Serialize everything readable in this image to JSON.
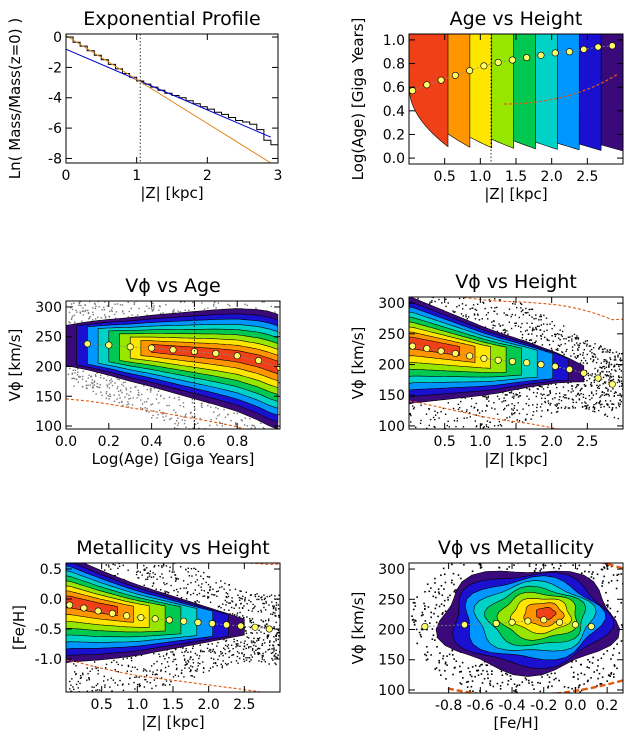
{
  "chart_data": [
    {
      "id": "p1",
      "type": "line",
      "title": "Exponential Profile",
      "xlabel": "|Z|  [kpc]",
      "ylabel": "Ln( Mass/Mass(z=0) )",
      "xlim": [
        0,
        3
      ],
      "ylim": [
        -8.3,
        0.2
      ],
      "xticks": [
        0,
        1,
        2,
        3
      ],
      "xtick_labels": [
        "0",
        "1",
        "2",
        "3"
      ],
      "yticks": [
        0,
        -2,
        -4,
        -6,
        -8
      ],
      "ytick_labels": [
        "0",
        "-2",
        "-4",
        "-6",
        "-8"
      ],
      "vline": 1.05,
      "series": [
        {
          "kind": "step",
          "color": "#000000",
          "x": [
            0,
            0.1,
            0.2,
            0.3,
            0.4,
            0.5,
            0.6,
            0.7,
            0.8,
            0.9,
            1.0,
            1.1,
            1.2,
            1.3,
            1.4,
            1.5,
            1.6,
            1.7,
            1.8,
            1.9,
            2.0,
            2.1,
            2.2,
            2.3,
            2.4,
            2.5,
            2.6,
            2.7,
            2.8,
            2.9
          ],
          "y": [
            0,
            -0.35,
            -0.6,
            -0.9,
            -1.2,
            -1.5,
            -1.8,
            -2.1,
            -2.4,
            -2.65,
            -2.9,
            -3.1,
            -3.3,
            -3.5,
            -3.7,
            -3.85,
            -4.0,
            -4.2,
            -4.4,
            -4.6,
            -4.75,
            -4.95,
            -5.1,
            -5.3,
            -5.5,
            -5.6,
            -5.75,
            -6.1,
            -6.8,
            -7.1
          ]
        },
        {
          "kind": "line",
          "color": "#0000cc",
          "x": [
            0,
            2.9
          ],
          "y": [
            -0.8,
            -6.6
          ]
        },
        {
          "kind": "line",
          "color": "#e08a1e",
          "x": [
            0,
            2.9
          ],
          "y": [
            0.1,
            -8.3
          ]
        }
      ]
    },
    {
      "id": "p2",
      "type": "heatmap",
      "title": "Age vs Height",
      "xlabel": "|Z|  [kpc]",
      "ylabel": "Log(Age) [Giga Years]",
      "xlim": [
        0,
        3
      ],
      "ylim": [
        -0.05,
        1.05
      ],
      "xticks": [
        0.5,
        1,
        1.5,
        2,
        2.5
      ],
      "xtick_labels": [
        "0.5",
        "1.0",
        "1.5",
        "2.0",
        "2.5"
      ],
      "yticks": [
        0,
        0.2,
        0.4,
        0.6,
        0.8,
        1.0
      ],
      "ytick_labels": [
        "0.0",
        "0.2",
        "0.4",
        "0.6",
        "0.8",
        "1.0"
      ],
      "vline": 1.15,
      "trend": {
        "x": [
          0.05,
          0.25,
          0.45,
          0.65,
          0.85,
          1.05,
          1.25,
          1.45,
          1.65,
          1.85,
          2.05,
          2.25,
          2.45,
          2.65,
          2.85
        ],
        "y": [
          0.57,
          0.62,
          0.66,
          0.7,
          0.74,
          0.78,
          0.81,
          0.83,
          0.85,
          0.87,
          0.89,
          0.9,
          0.92,
          0.94,
          0.95
        ]
      }
    },
    {
      "id": "p3",
      "type": "heatmap",
      "title": "Vϕ vs Age",
      "xlabel": "Log(Age)  [Giga Years]",
      "ylabel": "Vϕ  [km/s]",
      "xlim": [
        0,
        1
      ],
      "ylim": [
        95,
        310
      ],
      "xticks": [
        0,
        0.2,
        0.4,
        0.6,
        0.8
      ],
      "xtick_labels": [
        "0.0",
        "0.2",
        "0.4",
        "0.6",
        "0.8"
      ],
      "yticks": [
        100,
        150,
        200,
        250,
        300
      ],
      "ytick_labels": [
        "100",
        "150",
        "200",
        "250",
        "300"
      ],
      "vline": 0.6,
      "trend": {
        "x": [
          0.1,
          0.2,
          0.3,
          0.4,
          0.5,
          0.6,
          0.7,
          0.8,
          0.9,
          1.0
        ],
        "y": [
          238,
          236,
          233,
          231,
          228,
          225,
          222,
          218,
          210,
          198
        ]
      }
    },
    {
      "id": "p4",
      "type": "heatmap",
      "title": "Vϕ vs Height",
      "xlabel": "|Z|  [kpc]",
      "ylabel": "Vϕ  [km/s]",
      "xlim": [
        0,
        3
      ],
      "ylim": [
        95,
        310
      ],
      "xticks": [
        0.5,
        1,
        1.5,
        2,
        2.5
      ],
      "xtick_labels": [
        "0.5",
        "1.0",
        "1.5",
        "2.0",
        "2.5"
      ],
      "yticks": [
        100,
        150,
        200,
        250,
        300
      ],
      "ytick_labels": [
        "100",
        "150",
        "200",
        "250",
        "300"
      ],
      "trend": {
        "x": [
          0.05,
          0.25,
          0.45,
          0.65,
          0.85,
          1.05,
          1.25,
          1.45,
          1.65,
          1.85,
          2.05,
          2.25,
          2.45,
          2.65,
          2.85
        ],
        "y": [
          230,
          226,
          222,
          218,
          214,
          210,
          207,
          205,
          203,
          200,
          197,
          192,
          186,
          178,
          168
        ]
      }
    },
    {
      "id": "p5",
      "type": "heatmap",
      "title": "Metallicity vs Height",
      "xlabel": "|Z|  [kpc]",
      "ylabel": "[Fe/H]",
      "xlim": [
        0,
        3
      ],
      "ylim": [
        -1.55,
        0.6
      ],
      "xticks": [
        0.5,
        1,
        1.5,
        2,
        2.5
      ],
      "xtick_labels": [
        "0.5",
        "1.0",
        "1.5",
        "2.0",
        "2.5"
      ],
      "yticks": [
        0.5,
        0,
        -0.5,
        -1.0
      ],
      "ytick_labels": [
        "0.5",
        "0.0",
        "-0.5",
        "-1.0"
      ],
      "trend": {
        "x": [
          0.05,
          0.25,
          0.45,
          0.65,
          0.85,
          1.05,
          1.25,
          1.45,
          1.65,
          1.85,
          2.05,
          2.25,
          2.45,
          2.65,
          2.85
        ],
        "y": [
          -0.1,
          -0.15,
          -0.2,
          -0.24,
          -0.28,
          -0.31,
          -0.33,
          -0.35,
          -0.37,
          -0.39,
          -0.41,
          -0.43,
          -0.45,
          -0.47,
          -0.5
        ]
      }
    },
    {
      "id": "p6",
      "type": "heatmap",
      "title": "Vϕ vs Metallicity",
      "xlabel": "[Fe/H]",
      "ylabel": "Vϕ  [km/s]",
      "xlim": [
        -1.05,
        0.3
      ],
      "ylim": [
        95,
        310
      ],
      "xticks": [
        -0.8,
        -0.6,
        -0.4,
        -0.2,
        0,
        0.2
      ],
      "xtick_labels": [
        "-0.8",
        "-0.6",
        "-0.4",
        "-0.2",
        "0.0",
        "0.2"
      ],
      "yticks": [
        100,
        150,
        200,
        250,
        300
      ],
      "ytick_labels": [
        "100",
        "150",
        "200",
        "250",
        "300"
      ],
      "trend": {
        "x": [
          -0.95,
          -0.7,
          -0.5,
          -0.4,
          -0.3,
          -0.2,
          -0.1,
          0.0,
          0.1
        ],
        "y": [
          205,
          208,
          210,
          212,
          214,
          216,
          212,
          208,
          205
        ]
      }
    }
  ]
}
